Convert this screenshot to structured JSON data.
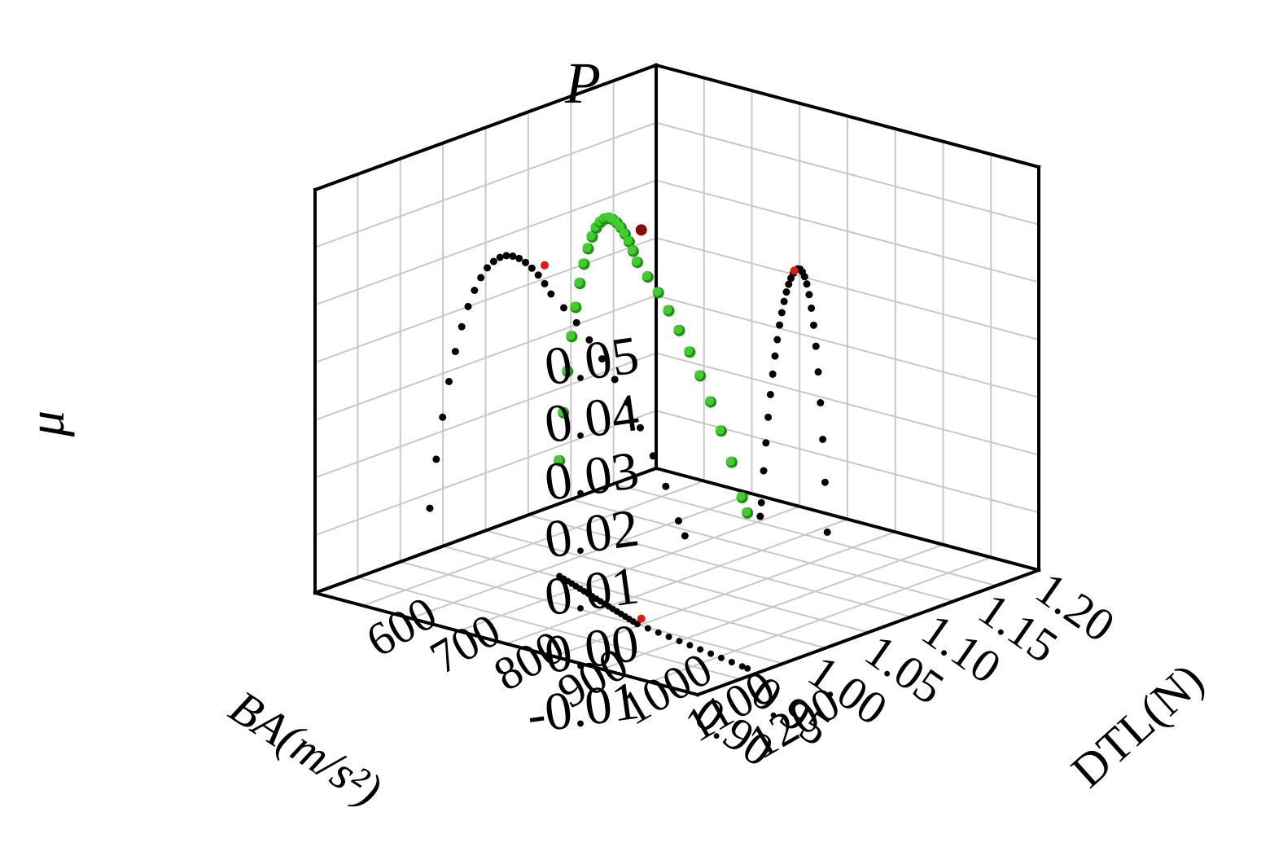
{
  "chart_data": {
    "type": "scatter",
    "title": "",
    "point_label": "P",
    "xlabel": "BA(m/s²)",
    "ylabel": "DTL(N)",
    "zlabel": "μ",
    "x_ticks": [
      "0.90",
      "0.95",
      "1.00",
      "1.05",
      "1.10",
      "1.15",
      "1.20"
    ],
    "y_ticks": [
      "600",
      "700",
      "800",
      "900",
      "1000",
      "1100",
      "1200"
    ],
    "z_ticks": [
      "-0.01",
      "0.00",
      "0.01",
      "0.02",
      "0.03",
      "0.04",
      "0.05"
    ],
    "xlim": [
      0.9,
      1.2
    ],
    "ylim": [
      600,
      1200
    ],
    "zlim": [
      -0.01,
      0.06
    ],
    "grid": true,
    "colors": {
      "points": "#3ecf2a",
      "projections": "#000000",
      "optimum": "#e8140e",
      "grid": "#c8c8c8"
    },
    "optimum": {
      "x": 0.985,
      "y": 960,
      "z": 0.0575
    },
    "series": [
      {
        "x": [
          1.014,
          1.012,
          1.01,
          1.008,
          1.006,
          1.004,
          1.002,
          1.0,
          0.998,
          0.996,
          0.994,
          0.992,
          0.99,
          0.988,
          0.986,
          0.984,
          0.982,
          0.98,
          0.978,
          0.976,
          0.974,
          0.972,
          0.97,
          0.968,
          0.966,
          0.964,
          0.962,
          0.96,
          0.958,
          0.956,
          0.955
        ],
        "y": [
          780,
          790,
          800,
          810,
          820,
          830,
          840,
          850,
          860,
          870,
          880,
          890,
          900,
          910,
          920,
          930,
          940,
          950,
          960,
          970,
          990,
          1010,
          1030,
          1050,
          1070,
          1090,
          1110,
          1130,
          1150,
          1170,
          1180
        ],
        "z": [
          0.01,
          0.0188,
          0.0264,
          0.0329,
          0.0384,
          0.043,
          0.0468,
          0.0499,
          0.0524,
          0.0544,
          0.0558,
          0.0568,
          0.0574,
          0.0576,
          0.0575,
          0.0571,
          0.0564,
          0.0555,
          0.0543,
          0.0528,
          0.051,
          0.049,
          0.0466,
          0.0439,
          0.0409,
          0.0375,
          0.0337,
          0.0294,
          0.0247,
          0.0193,
          0.017
        ]
      }
    ]
  }
}
